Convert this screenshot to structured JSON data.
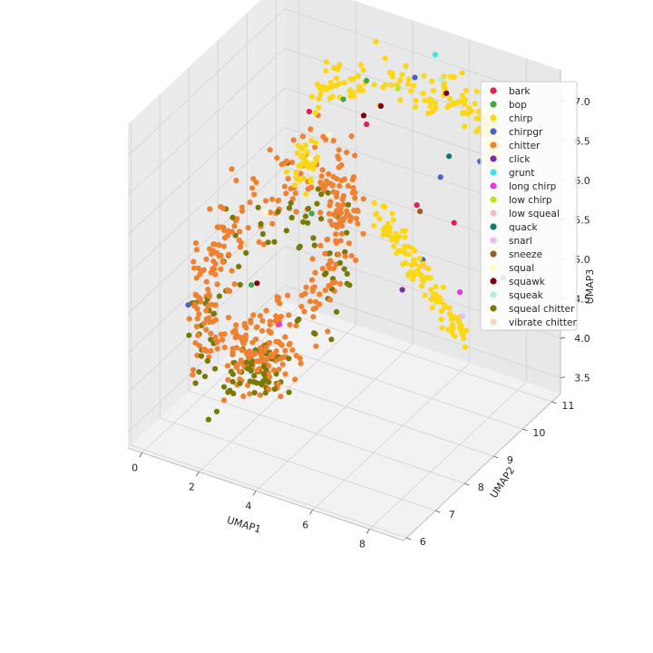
{
  "chart_data": {
    "type": "scatter",
    "projection": "3d",
    "grid": true,
    "legend_placement": "top-right",
    "xlabel": "UMAP1",
    "ylabel": "UMAP2",
    "zlabel": "UMAP3",
    "xlim": [
      -0.5,
      9.2
    ],
    "ylim": [
      5.9,
      11.3
    ],
    "zlim": [
      3.3,
      7.4
    ],
    "xticks": [
      "0",
      "2",
      "4",
      "6",
      "8"
    ],
    "yticks": [
      "6",
      "7",
      "8",
      "9",
      "10",
      "11"
    ],
    "zticks": [
      "3.5",
      "4.0",
      "4.5",
      "5.0",
      "5.5",
      "6.0",
      "6.5",
      "7.0"
    ],
    "series": [
      {
        "name": "bark",
        "color": "#e0214f",
        "points": [
          [
            6.6,
            8.9,
            6.2
          ],
          [
            7.4,
            9.4,
            5.9
          ],
          [
            2.1,
            9.6,
            6.6
          ],
          [
            3.5,
            10.2,
            6.4
          ]
        ]
      },
      {
        "name": "bop",
        "color": "#3ea84a",
        "points": [
          [
            3.3,
            9.6,
            6.9
          ],
          [
            2.8,
            9.0,
            5.6
          ],
          [
            1.9,
            7.8,
            5.0
          ],
          [
            3.6,
            10.1,
            7.0
          ]
        ]
      },
      {
        "name": "chirp",
        "color": "#fcd716",
        "points": []
      },
      {
        "name": "chirpgr",
        "color": "#4a64c6",
        "points": [
          [
            5.2,
            10.2,
            7.2
          ],
          [
            6.0,
            10.3,
            6.0
          ],
          [
            6.3,
            9.4,
            5.3
          ],
          [
            7.9,
            9.8,
            6.6
          ],
          [
            8.0,
            10.5,
            4.9
          ],
          [
            0.6,
            6.9,
            4.9
          ]
        ]
      },
      {
        "name": "chitter",
        "color": "#ef8232",
        "points": []
      },
      {
        "name": "click",
        "color": "#7e2aa8",
        "points": [
          [
            6.6,
            8.4,
            5.3
          ]
        ]
      },
      {
        "name": "grunt",
        "color": "#3ee3e6",
        "points": [
          [
            5.1,
            11.0,
            7.2
          ]
        ]
      },
      {
        "name": "long chirp",
        "color": "#e23ae4",
        "points": [
          [
            7.5,
            9.5,
            5.0
          ],
          [
            3.5,
            7.2,
            4.9
          ]
        ]
      },
      {
        "name": "low chirp",
        "color": "#b4e81c",
        "points": [
          [
            4.2,
            10.6,
            6.8
          ]
        ]
      },
      {
        "name": "low squeal",
        "color": "#f4bcbc",
        "points": [
          [
            6.8,
            9.0,
            5.4
          ]
        ]
      },
      {
        "name": "quack",
        "color": "#107a70",
        "points": [
          [
            6.3,
            10.3,
            6.3
          ]
        ]
      },
      {
        "name": "snarl",
        "color": "#e4bff0",
        "points": [
          [
            7.8,
            9.3,
            4.8
          ]
        ]
      },
      {
        "name": "sneeze",
        "color": "#9a5a26",
        "points": [
          [
            6.2,
            9.4,
            5.9
          ]
        ]
      },
      {
        "name": "squal",
        "color": "#fffac6",
        "points": [
          [
            2.6,
            9.8,
            6.3
          ],
          [
            2.3,
            9.4,
            6.1
          ],
          [
            1.8,
            8.4,
            5.7
          ]
        ]
      },
      {
        "name": "squawk",
        "color": "#7c0008",
        "points": [
          [
            3.8,
            10.4,
            6.6
          ],
          [
            2.0,
            7.9,
            5.0
          ],
          [
            3.4,
            10.2,
            6.5
          ],
          [
            5.8,
            10.7,
            6.9
          ]
        ]
      },
      {
        "name": "squeak",
        "color": "#b3f2cc",
        "points": [
          [
            5.5,
            10.8,
            7.0
          ]
        ]
      },
      {
        "name": "squeal chitter",
        "color": "#787a05",
        "points": []
      },
      {
        "name": "vibrate chitter",
        "color": "#f9d6b4",
        "points": [
          [
            1.5,
            8.0,
            5.4
          ]
        ]
      }
    ],
    "clusters": [
      {
        "series": "chirp",
        "description": "upper-right arc and right-side vertical band of yellow points",
        "kind": "arc",
        "center": [
          4.8,
          10.2,
          6.6
        ],
        "radius": [
          3.0,
          1.0
        ],
        "zspread": 0.5,
        "angle": [
          0.0,
          3.14
        ],
        "count": 150,
        "seed": 11
      },
      {
        "series": "chirp",
        "kind": "band",
        "center": [
          6.8,
          8.9,
          5.3
        ],
        "radius": [
          0.8,
          0.9
        ],
        "zspread": 1.0,
        "count": 110,
        "seed": 17
      },
      {
        "series": "chirp",
        "kind": "blob",
        "center": [
          2.4,
          9.2,
          6.1
        ],
        "radius": [
          0.5,
          0.5
        ],
        "zspread": 0.5,
        "count": 30,
        "seed": 23
      },
      {
        "series": "chitter",
        "kind": "ring",
        "center": [
          2.2,
          8.3,
          5.2
        ],
        "radius": [
          2.0,
          2.0
        ],
        "zspread": 0.9,
        "count": 330,
        "seed": 31
      },
      {
        "series": "chitter",
        "kind": "blob",
        "center": [
          2.8,
          7.2,
          4.4
        ],
        "radius": [
          1.6,
          0.8
        ],
        "zspread": 0.6,
        "count": 90,
        "seed": 37
      },
      {
        "series": "squeal chitter",
        "kind": "ring",
        "center": [
          2.4,
          8.0,
          4.9
        ],
        "radius": [
          1.9,
          1.8
        ],
        "zspread": 0.9,
        "count": 90,
        "seed": 41
      },
      {
        "series": "squeal chitter",
        "kind": "blob",
        "center": [
          3.0,
          7.0,
          4.3
        ],
        "radius": [
          1.4,
          0.6
        ],
        "zspread": 0.4,
        "count": 40,
        "seed": 43
      }
    ]
  }
}
